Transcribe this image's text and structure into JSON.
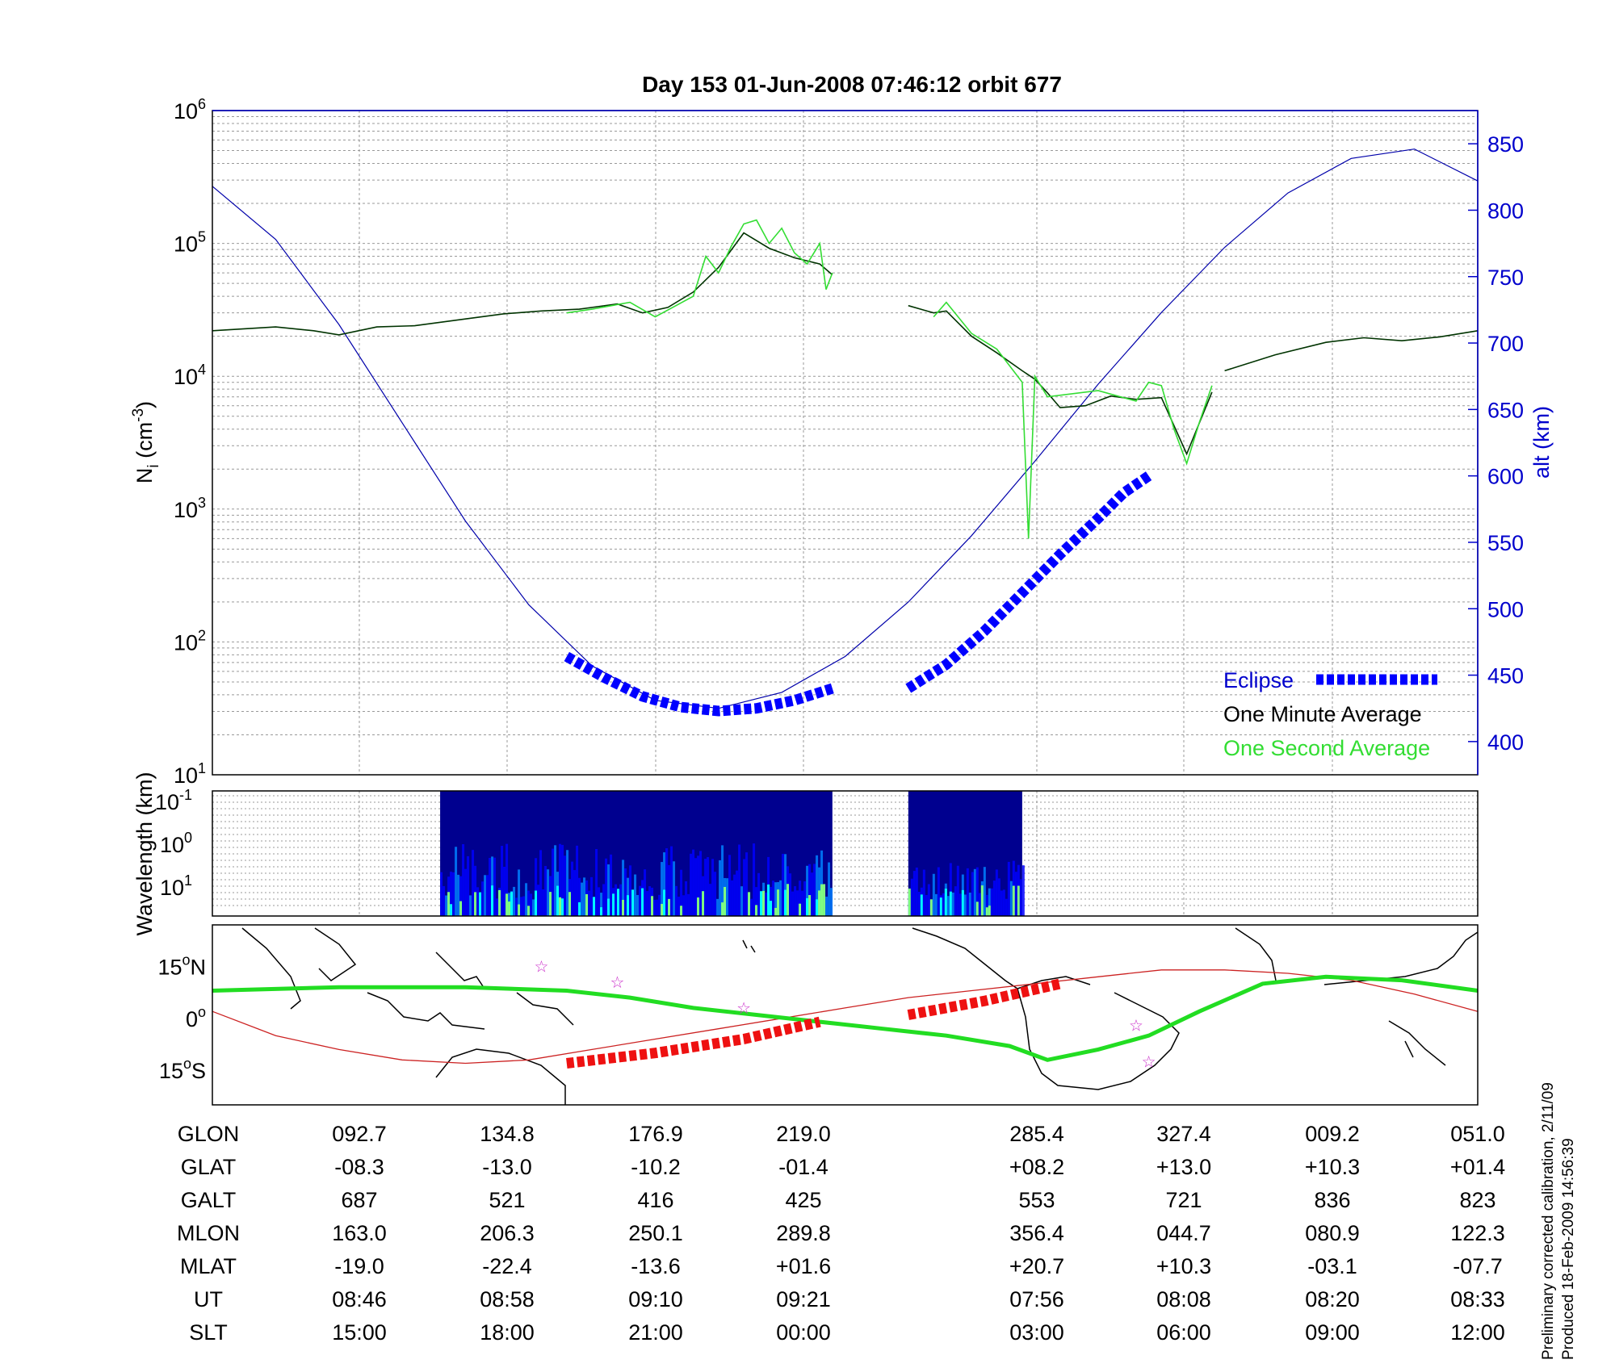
{
  "chart_data": [
    {
      "type": "line",
      "title": "Day 153  01-Jun-2008 07:46:12   orbit 677",
      "ylabel_main": "N",
      "ylabel_sub": "i",
      "ylabel_unit": "(cm",
      "ylabel_exp": "-3",
      "ylabel_close": ")",
      "yscale": "log",
      "ylim": [
        10,
        1000000
      ],
      "y_ticks": [
        {
          "base": "10",
          "exp": "1",
          "value": 10
        },
        {
          "base": "10",
          "exp": "2",
          "value": 100
        },
        {
          "base": "10",
          "exp": "3",
          "value": 1000
        },
        {
          "base": "10",
          "exp": "4",
          "value": 10000
        },
        {
          "base": "10",
          "exp": "5",
          "value": 100000
        },
        {
          "base": "10",
          "exp": "6",
          "value": 1000000
        }
      ],
      "y2label": "alt (km)",
      "y2lim": [
        375,
        875
      ],
      "y2_ticks": [
        "400",
        "450",
        "500",
        "550",
        "600",
        "650",
        "700",
        "750",
        "800",
        "850"
      ],
      "x_ticks_label_positions": [
        "092.7",
        "134.8",
        "176.9",
        "219.0",
        "285.4",
        "327.4",
        "009.2",
        "051.0"
      ],
      "grid": true,
      "legend_position": "bottom-right",
      "legend": [
        {
          "label": "Eclipse",
          "color": "#0000ff",
          "style": "dashed-thick"
        },
        {
          "label": "One Minute Average",
          "color": "#000000",
          "style": "text-only"
        },
        {
          "label": "One Second Average",
          "color": "#33dd33",
          "style": "text-only"
        }
      ],
      "series": [
        {
          "name": "alt (km)",
          "axis": "right",
          "color": "#0000aa",
          "x": [
            0,
            0.05,
            0.1,
            0.15,
            0.2,
            0.25,
            0.3,
            0.35,
            0.4,
            0.45,
            0.5,
            0.55,
            0.6,
            0.65,
            0.7,
            0.75,
            0.8,
            0.85,
            0.9,
            0.95,
            1.0
          ],
          "y": [
            818,
            778,
            714,
            640,
            566,
            503,
            457,
            431,
            425,
            437,
            464,
            505,
            555,
            611,
            669,
            723,
            772,
            813,
            839,
            846,
            822
          ]
        },
        {
          "name": "One Minute Average",
          "axis": "left",
          "color": "#003300",
          "segments": [
            {
              "x": [
                0,
                0.05,
                0.08,
                0.1,
                0.13,
                0.16,
                0.2,
                0.23,
                0.26,
                0.29,
                0.32,
                0.34,
                0.36,
                0.38,
                0.4,
                0.42,
                0.44,
                0.46,
                0.48,
                0.49
              ],
              "y": [
                22000,
                23500,
                22000,
                20500,
                23500,
                24000,
                27000,
                29500,
                31000,
                32000,
                35000,
                30000,
                33000,
                43000,
                66000,
                120000,
                92000,
                78000,
                70000,
                58000
              ]
            },
            {
              "x": [
                0.55,
                0.57,
                0.58,
                0.6,
                0.62,
                0.64,
                0.65,
                0.66,
                0.67,
                0.69,
                0.71,
                0.73,
                0.75,
                0.77,
                0.79
              ],
              "y": [
                34000,
                30000,
                31000,
                20000,
                15000,
                11000,
                9500,
                7500,
                5800,
                6000,
                7100,
                6700,
                6900,
                2600,
                7600
              ]
            },
            {
              "x": [
                0.8,
                0.84,
                0.88,
                0.91,
                0.94,
                0.97,
                1.0
              ],
              "y": [
                11000,
                14500,
                18000,
                19500,
                18500,
                19800,
                22000
              ]
            }
          ]
        },
        {
          "name": "One Second Average",
          "axis": "left",
          "color": "#33dd33",
          "segments": [
            {
              "x": [
                0.28,
                0.3,
                0.33,
                0.35,
                0.38,
                0.39,
                0.4,
                0.41,
                0.42,
                0.43,
                0.44,
                0.45,
                0.46,
                0.47,
                0.48,
                0.485,
                0.49
              ],
              "y": [
                30000,
                32000,
                36000,
                28000,
                40000,
                80000,
                60000,
                95000,
                140000,
                150000,
                100000,
                130000,
                85000,
                70000,
                100000,
                45000,
                60000
              ]
            },
            {
              "x": [
                0.57,
                0.58,
                0.6,
                0.62,
                0.64,
                0.645,
                0.65,
                0.66,
                0.7,
                0.73,
                0.74,
                0.75,
                0.76,
                0.77,
                0.78,
                0.79
              ],
              "y": [
                28000,
                36000,
                21000,
                16000,
                9000,
                600,
                10000,
                7000,
                7800,
                6500,
                9000,
                8500,
                4000,
                2200,
                4500,
                8500
              ]
            }
          ]
        },
        {
          "name": "Eclipse",
          "axis": "right",
          "color": "#0000ff",
          "segments": [
            {
              "x": [
                0.28,
                0.31,
                0.34,
                0.37,
                0.4,
                0.43,
                0.46,
                0.49
              ],
              "y": [
                464,
                448,
                434,
                426,
                423,
                425,
                431,
                440
              ]
            },
            {
              "x": [
                0.55,
                0.58,
                0.61,
                0.64,
                0.67,
                0.7,
                0.72,
                0.74
              ],
              "y": [
                440,
                458,
                483,
                512,
                541,
                568,
                587,
                600
              ]
            }
          ]
        }
      ]
    },
    {
      "type": "heatmap",
      "ylabel": "Wavelength (km)",
      "y_ticks": [
        {
          "base": "10",
          "exp": "-1"
        },
        {
          "base": "10",
          "exp": "0"
        },
        {
          "base": "10",
          "exp": "1"
        }
      ],
      "blocks": [
        {
          "x_start": 0.18,
          "x_end": 0.49
        },
        {
          "x_start": 0.55,
          "x_end": 0.64
        }
      ],
      "colormap": [
        "#00008f",
        "#0000ff",
        "#0080ff",
        "#00ffff",
        "#80ff80",
        "#ffff00",
        "#ff8000"
      ]
    },
    {
      "type": "line",
      "subtype": "map",
      "y_ticks": [
        {
          "deg": "15",
          "dir": "N",
          "value": 15
        },
        {
          "deg": "0",
          "dir": "",
          "value": 0
        },
        {
          "deg": "15",
          "dir": "S",
          "value": -15
        }
      ],
      "ylim": [
        -25,
        27
      ],
      "series": [
        {
          "name": "magnetic-equator",
          "color": "#cc2222",
          "x": [
            0,
            0.05,
            0.1,
            0.15,
            0.2,
            0.25,
            0.3,
            0.35,
            0.4,
            0.45,
            0.5,
            0.55,
            0.6,
            0.65,
            0.7,
            0.75,
            0.8,
            0.85,
            0.9,
            0.95,
            1.0
          ],
          "y": [
            2,
            -5,
            -9,
            -12,
            -13,
            -12,
            -9,
            -6,
            -3,
            0,
            3,
            6,
            8,
            10,
            12,
            14,
            14,
            13,
            11,
            7,
            2
          ]
        },
        {
          "name": "ground-track",
          "color": "#22dd22",
          "x": [
            0,
            0.1,
            0.2,
            0.28,
            0.33,
            0.38,
            0.43,
            0.48,
            0.53,
            0.58,
            0.63,
            0.66,
            0.7,
            0.74,
            0.78,
            0.83,
            0.88,
            0.94,
            1.0
          ],
          "y": [
            8,
            9,
            9,
            8,
            6,
            3,
            1,
            -1,
            -3,
            -5,
            -8,
            -12,
            -9,
            -5,
            2,
            10,
            12,
            11,
            8
          ]
        },
        {
          "name": "eclipse-track",
          "color": "#ee1111",
          "segments": [
            {
              "x": [
                0.28,
                0.35,
                0.42,
                0.48
              ],
              "y": [
                -13,
                -10,
                -6,
                -1
              ]
            },
            {
              "x": [
                0.55,
                0.61,
                0.67
              ],
              "y": [
                1,
                5,
                10
              ]
            }
          ]
        }
      ],
      "markers": [
        {
          "x": 0.26,
          "y": 15,
          "symbol": "☆"
        },
        {
          "x": 0.32,
          "y": 10.5,
          "symbol": "☆"
        },
        {
          "x": 0.42,
          "y": 3,
          "symbol": "☆"
        },
        {
          "x": 0.74,
          "y": -12.5,
          "symbol": "☆"
        },
        {
          "x": 0.73,
          "y": -2,
          "symbol": "☆"
        }
      ]
    }
  ],
  "table": {
    "rows": [
      {
        "label": "GLON",
        "values": [
          "092.7",
          "134.8",
          "176.9",
          "219.0",
          "285.4",
          "327.4",
          "009.2",
          "051.0"
        ]
      },
      {
        "label": "GLAT",
        "values": [
          "-08.3",
          "-13.0",
          "-10.2",
          "-01.4",
          "+08.2",
          "+13.0",
          "+10.3",
          "+01.4"
        ]
      },
      {
        "label": "GALT",
        "values": [
          "687",
          "521",
          "416",
          "425",
          "553",
          "721",
          "836",
          "823"
        ]
      },
      {
        "label": "MLON",
        "values": [
          "163.0",
          "206.3",
          "250.1",
          "289.8",
          "356.4",
          "044.7",
          "080.9",
          "122.3"
        ]
      },
      {
        "label": "MLAT",
        "values": [
          "-19.0",
          "-22.4",
          "-13.6",
          "+01.6",
          "+20.7",
          "+10.3",
          "-03.1",
          "-07.7"
        ]
      },
      {
        "label": "UT",
        "values": [
          "08:46",
          "08:58",
          "09:10",
          "09:21",
          "07:56",
          "08:08",
          "08:20",
          "08:33"
        ]
      },
      {
        "label": "SLT",
        "values": [
          "15:00",
          "18:00",
          "21:00",
          "00:00",
          "03:00",
          "06:00",
          "09:00",
          "12:00"
        ]
      }
    ]
  },
  "footnote": {
    "line1": "Preliminary corrected calibration, 2/11/09",
    "line2": "Produced 18-Feb-2009 14:56:39"
  }
}
